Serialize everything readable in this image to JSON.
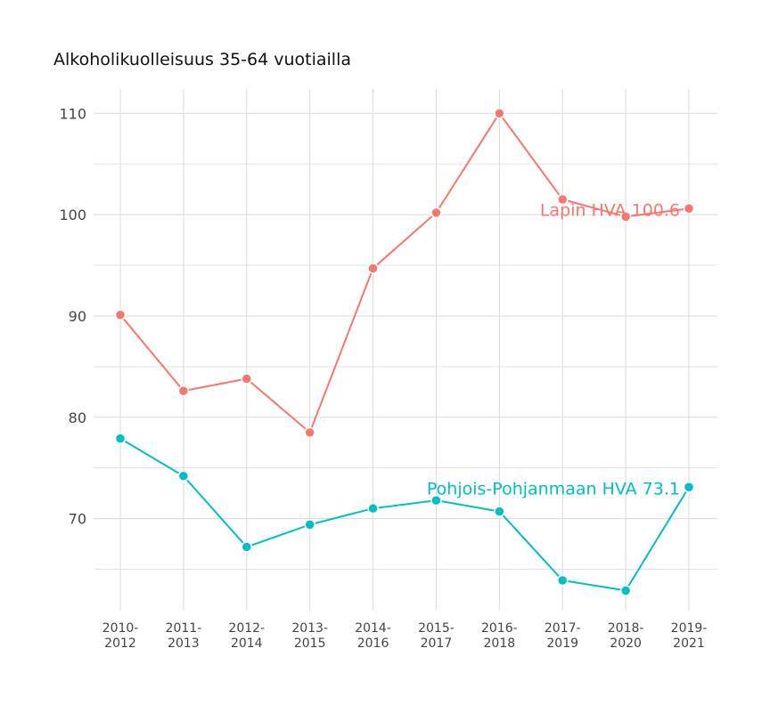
{
  "chart_data": {
    "type": "line",
    "title": "Alkoholikuolleisuus 35-64 vuotiailla",
    "xlabel": "",
    "ylabel": "",
    "categories": [
      "2010-\n2012",
      "2011-\n2013",
      "2012-\n2014",
      "2013-\n2015",
      "2014-\n2016",
      "2015-\n2017",
      "2016-\n2018",
      "2017-\n2019",
      "2018-\n2020",
      "2019-\n2021"
    ],
    "ylim": [
      61,
      112.4
    ],
    "yticks": [
      70,
      80,
      90,
      100,
      110
    ],
    "grid": true,
    "legend": "none (direct labels at last point)",
    "series": [
      {
        "name": "Lapin HVA",
        "label": "Lapin HVA 100.6",
        "color": "#F8766D",
        "values": [
          90.1,
          82.6,
          83.8,
          78.5,
          94.7,
          100.2,
          110.0,
          101.5,
          99.8,
          100.6
        ]
      },
      {
        "name": "Pohjois-Pohjanmaan HVA",
        "label": "Pohjois-Pohjanmaan HVA 73.1",
        "color": "#00BFC4",
        "values": [
          77.9,
          74.2,
          67.2,
          69.4,
          71.0,
          71.8,
          70.7,
          63.9,
          62.9,
          73.1
        ]
      }
    ]
  }
}
